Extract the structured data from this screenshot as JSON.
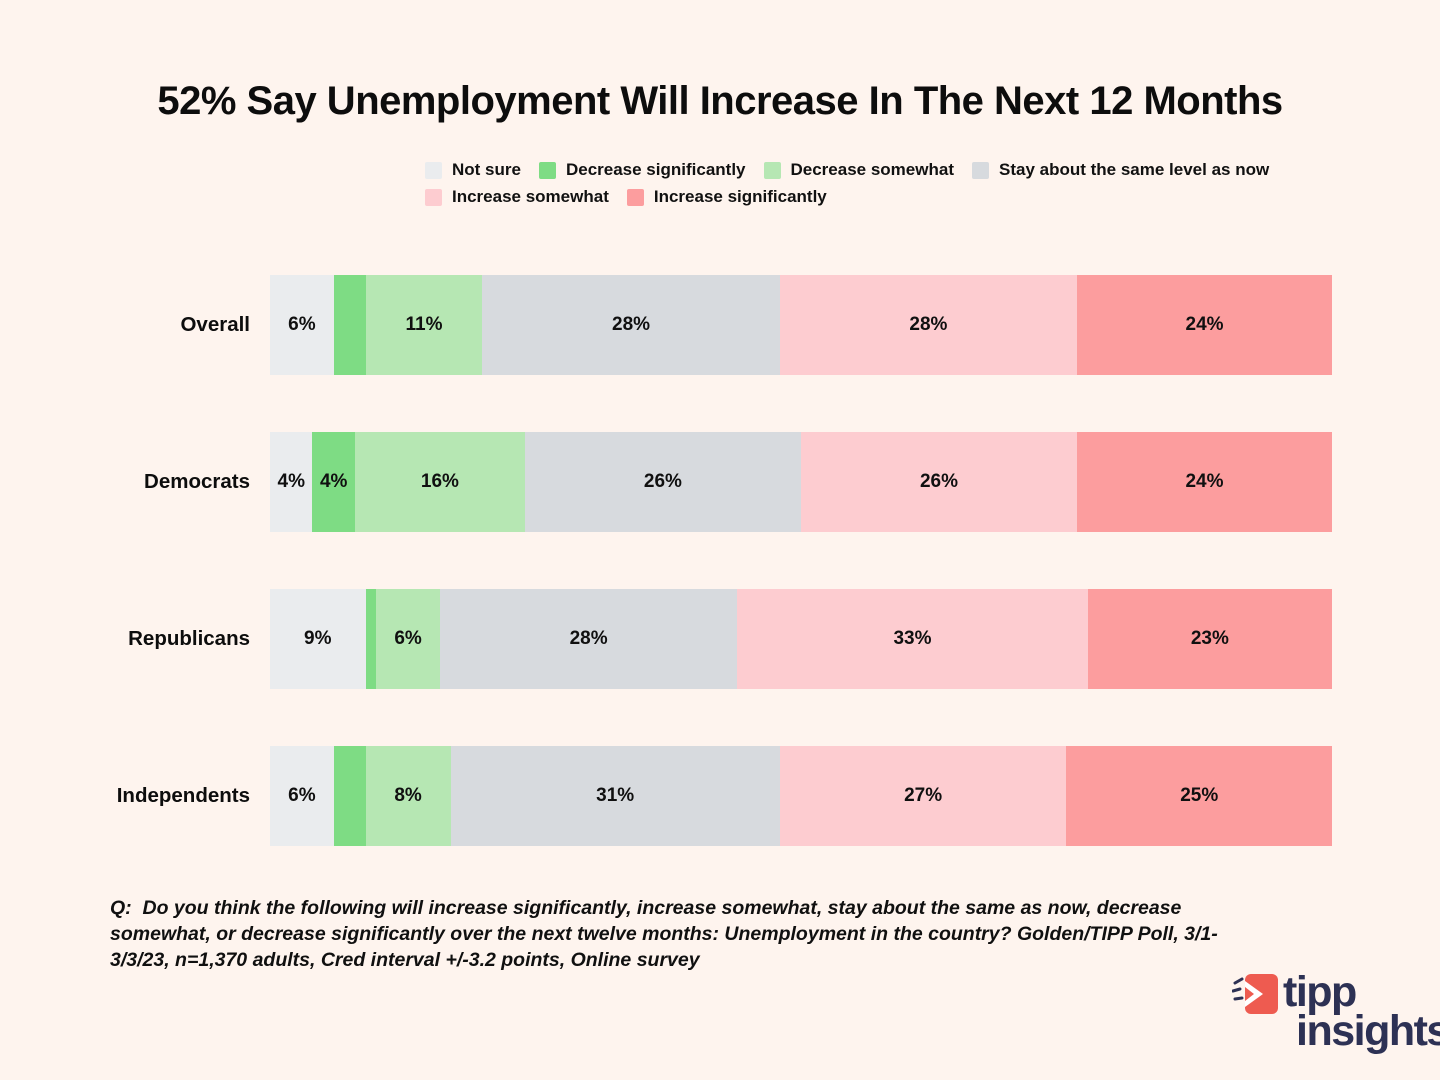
{
  "title": "52% Say Unemployment Will Increase In The Next 12 Months",
  "background_color": "#fef4ee",
  "legend": {
    "position": "top",
    "items": [
      {
        "label": "Not sure",
        "color": "#eaecee"
      },
      {
        "label": "Decrease significantly",
        "color": "#7edc84"
      },
      {
        "label": "Decrease somewhat",
        "color": "#b6e7b3"
      },
      {
        "label": "Stay about the same level as now",
        "color": "#d7dade"
      },
      {
        "label": "Increase somewhat",
        "color": "#fdccd0"
      },
      {
        "label": "Increase significantly",
        "color": "#fc9d9e"
      }
    ]
  },
  "chart_data": {
    "type": "bar",
    "orientation": "horizontal",
    "stacked": true,
    "unit": "%",
    "xlim": [
      0,
      100
    ],
    "grid": false,
    "legend_position": "top",
    "categories": [
      "Overall",
      "Democrats",
      "Republicans",
      "Independents"
    ],
    "series": [
      {
        "name": "Not sure",
        "color": "#eaecee",
        "values": [
          6,
          4,
          9,
          6
        ]
      },
      {
        "name": "Decrease significantly",
        "color": "#7edc84",
        "values": [
          3,
          4,
          1,
          3
        ]
      },
      {
        "name": "Decrease somewhat",
        "color": "#b6e7b3",
        "values": [
          11,
          16,
          6,
          8
        ]
      },
      {
        "name": "Stay about the same level as now",
        "color": "#d7dade",
        "values": [
          28,
          26,
          28,
          31
        ]
      },
      {
        "name": "Increase somewhat",
        "color": "#fdccd0",
        "values": [
          28,
          26,
          33,
          27
        ]
      },
      {
        "name": "Increase significantly",
        "color": "#fc9d9e",
        "values": [
          24,
          24,
          23,
          25
        ]
      }
    ],
    "data_label_format": "{value}%",
    "min_label_value": 4
  },
  "footnote": "Q:  Do you think the following will increase significantly, increase somewhat, stay about the same as now, decrease somewhat, or decrease significantly over the next twelve months: Unemployment in the country? Golden/TIPP Poll, 3/1-3/3/23, n=1,370 adults, Cred interval +/-3.2 points, Online survey",
  "logo": {
    "word1": "tipp",
    "word2": "insights",
    "text_color": "#2d3154",
    "icon_color": "#ee5b50",
    "icon": "tipp-arrow-icon"
  }
}
